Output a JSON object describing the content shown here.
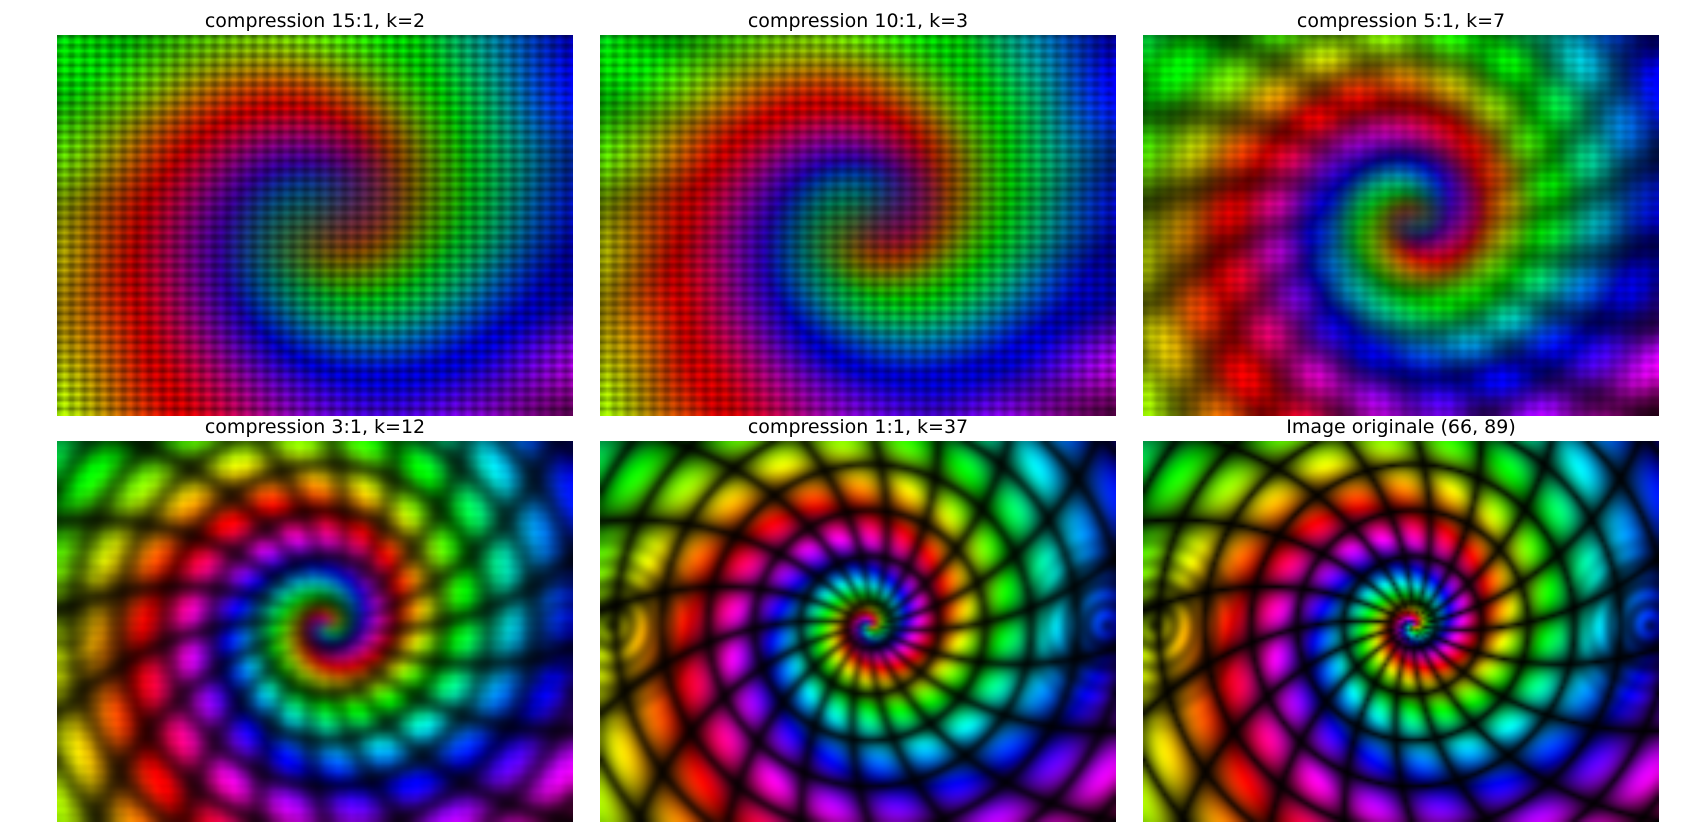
{
  "panels": [
    {
      "title": "compression 15:1, k=2",
      "ratio": 15,
      "k": 2,
      "blur": 9.0,
      "ring_strength": 0.05
    },
    {
      "title": "compression 10:1, k=3",
      "ratio": 10,
      "k": 3,
      "blur": 7.0,
      "ring_strength": 0.15
    },
    {
      "title": "compression 5:1, k=7",
      "ratio": 5,
      "k": 7,
      "blur": 3.2,
      "ring_strength": 0.55
    },
    {
      "title": "compression 3:1, k=12",
      "ratio": 3,
      "k": 12,
      "blur": 1.6,
      "ring_strength": 0.85
    },
    {
      "title": "compression 1:1, k=37",
      "ratio": 1,
      "k": 37,
      "blur": 0.6,
      "ring_strength": 1.0
    },
    {
      "title": "Image originale (66, 89)",
      "ratio": 0,
      "k": 0,
      "blur": 0.4,
      "ring_strength": 1.0
    }
  ],
  "original_shape": [
    66,
    89
  ],
  "palette": [
    "#ff0000",
    "#ff7f00",
    "#ffff00",
    "#00ff55",
    "#00ffff",
    "#7f00ff",
    "#ff00aa"
  ]
}
